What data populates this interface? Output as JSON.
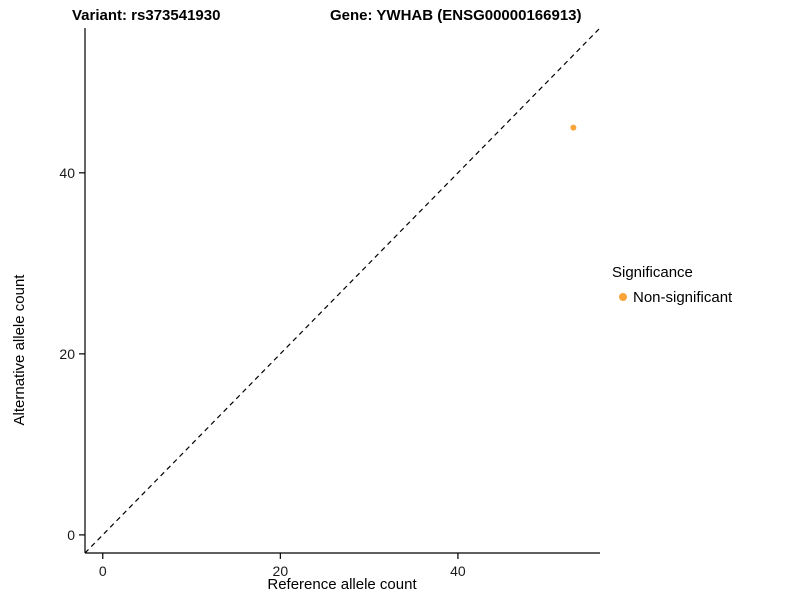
{
  "titles": {
    "left": "Variant: rs373541930",
    "right": "Gene: YWHAB (ENSG00000166913)"
  },
  "chart_data": {
    "type": "scatter",
    "title_left": "Variant: rs373541930",
    "title_right": "Gene: YWHAB (ENSG00000166913)",
    "xlabel": "Reference allele count",
    "ylabel": "Alternative allele count",
    "xlim": [
      -2,
      56
    ],
    "ylim": [
      -2,
      56
    ],
    "xticks": [
      0,
      20,
      40
    ],
    "yticks": [
      0,
      20,
      40
    ],
    "grid": false,
    "axis_color": "#000000",
    "points": [
      {
        "x": 53,
        "y": 45,
        "series": "Non-significant"
      }
    ],
    "point_radius": 3,
    "identity_line": {
      "from": [
        -2,
        -2
      ],
      "to": [
        56,
        56
      ],
      "style": "dashed",
      "color": "#000000"
    },
    "legend": {
      "title": "Significance",
      "position": "right",
      "entries": [
        {
          "label": "Non-significant",
          "color": "#FAA43A"
        }
      ]
    }
  }
}
